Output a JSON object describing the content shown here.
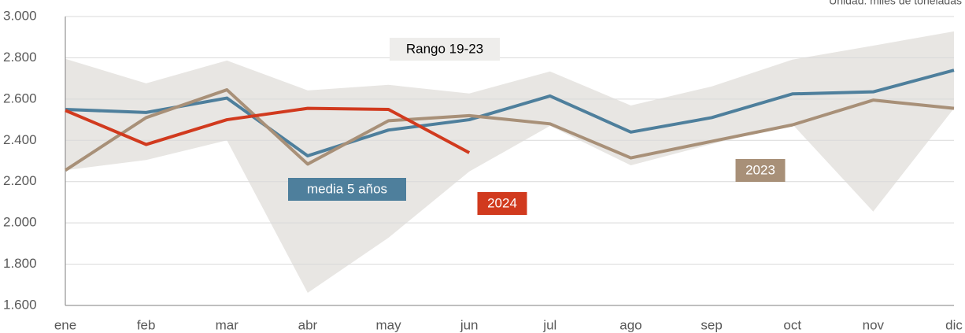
{
  "chart_data": {
    "type": "line",
    "unit_note": "Unidad: miles de toneladas",
    "categories": [
      "ene",
      "feb",
      "mar",
      "abr",
      "may",
      "jun",
      "jul",
      "ago",
      "sep",
      "oct",
      "nov",
      "dic"
    ],
    "band": {
      "name": "Rango 19-23",
      "color": "#e8e6e3",
      "upper": [
        2795,
        2676,
        2787,
        2642,
        2669,
        2627,
        2734,
        2569,
        2661,
        2791,
        2859,
        2928
      ],
      "lower": [
        2255,
        2305,
        2400,
        1661,
        1928,
        2249,
        2470,
        2279,
        2382,
        2478,
        2055,
        2555
      ]
    },
    "series": [
      {
        "name": "media 5 años",
        "color": "#4e7f9c",
        "values": [
          2550,
          2535,
          2605,
          2325,
          2450,
          2500,
          2615,
          2440,
          2510,
          2625,
          2635,
          2740
        ]
      },
      {
        "name": "2023",
        "color": "#a89078",
        "values": [
          2255,
          2510,
          2645,
          2285,
          2495,
          2520,
          2480,
          2315,
          2395,
          2475,
          2595,
          2555
        ]
      },
      {
        "name": "2024",
        "color": "#d13a1e",
        "values": [
          2545,
          2380,
          2500,
          2555,
          2550,
          2340,
          null,
          null,
          null,
          null,
          null,
          null
        ]
      }
    ],
    "ylim": [
      1600,
      3000
    ],
    "yticks": [
      {
        "value": 1600,
        "label": "1.600"
      },
      {
        "value": 1800,
        "label": "1.800"
      },
      {
        "value": 2000,
        "label": "2.000"
      },
      {
        "value": 2200,
        "label": "2.200"
      },
      {
        "value": 2400,
        "label": "2.400"
      },
      {
        "value": 2600,
        "label": "2.600"
      },
      {
        "value": 2800,
        "label": "2.800"
      },
      {
        "value": 3000,
        "label": "3.000"
      }
    ],
    "grid": true
  }
}
